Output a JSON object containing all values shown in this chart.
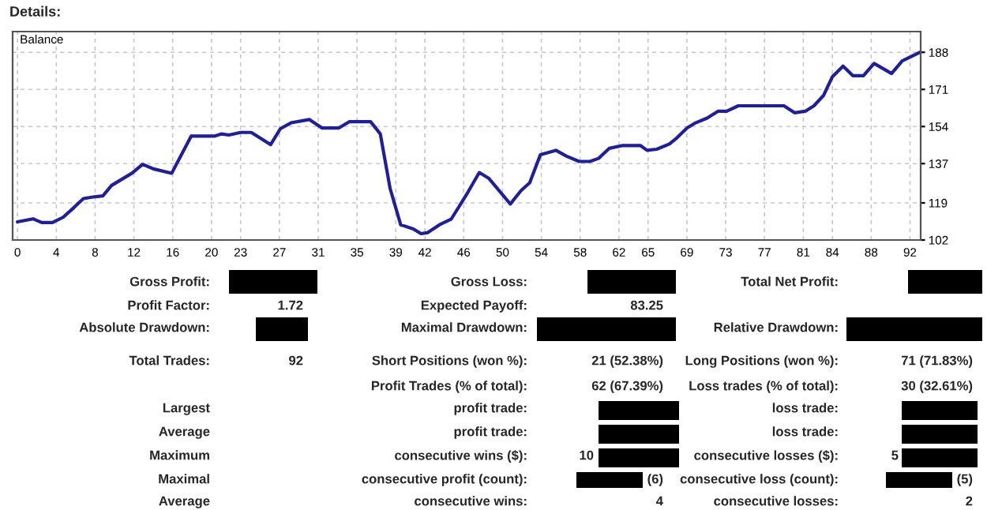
{
  "chart_data": {
    "type": "line",
    "title": "Details:",
    "xlim": [
      -0.5,
      93.1
    ],
    "ylim": [
      102,
      197.5
    ],
    "xticks": [
      0,
      4,
      8,
      12,
      16,
      20,
      23,
      27,
      31,
      35,
      39,
      42,
      46,
      50,
      54,
      58,
      62,
      65,
      69,
      73,
      77,
      81,
      84,
      88,
      92
    ],
    "yticks": [
      102,
      119,
      137,
      154,
      171,
      188
    ],
    "grid": true,
    "series": [
      {
        "name": "Balance",
        "color": "#1f1f9e",
        "x": [
          0,
          1.6,
          2.5,
          3.6,
          4.7,
          5.8,
          6.8,
          7.8,
          8.8,
          9.7,
          11.8,
          12.9,
          14,
          15.9,
          17.9,
          20.3,
          21,
          21.8,
          23,
          24.1,
          26.1,
          27.1,
          28.2,
          30.1,
          31.4,
          33.1,
          34.2,
          36.4,
          37.4,
          38.4,
          39.5,
          40.8,
          41.6,
          42.3,
          43.5,
          44.7,
          46.3,
          47.6,
          48.6,
          50.8,
          51.9,
          52.8,
          53.9,
          55.5,
          56.6,
          57.9,
          59,
          59.9,
          61,
          62.4,
          64.2,
          64.9,
          65.9,
          67.2,
          68,
          69,
          69.9,
          71.1,
          72.2,
          73.1,
          74.3,
          79,
          80.1,
          81.2,
          82.1,
          83.1,
          84,
          85.1,
          86.1,
          87.2,
          88.3,
          90.1,
          91.2,
          93
        ],
        "values": [
          110.3,
          111.7,
          110,
          110,
          112.4,
          116.8,
          121,
          121.7,
          122.2,
          127,
          132.6,
          136.7,
          134.6,
          132.6,
          149.6,
          149.6,
          150.6,
          150.1,
          151.3,
          151.3,
          145.7,
          153,
          155.7,
          157.2,
          153.3,
          153.3,
          156.2,
          156.2,
          150.6,
          125.8,
          109,
          107.1,
          104.9,
          105.4,
          109,
          111.5,
          122.9,
          132.9,
          130.2,
          118.5,
          124.6,
          128.2,
          141.1,
          143.1,
          140.4,
          138,
          138,
          139.4,
          144,
          145.3,
          145.3,
          143.1,
          143.6,
          146,
          148.9,
          153.3,
          155.7,
          157.9,
          161,
          161,
          163.5,
          163.5,
          160.3,
          161,
          163.5,
          168.3,
          176.8,
          181.7,
          177.3,
          177.3,
          182.9,
          178.3,
          184.1,
          188
        ]
      }
    ],
    "annotations": [
      "Gross Profit:",
      "Gross Loss:",
      "Total Net Profit:",
      "Profit Factor:",
      "1.72",
      "Expected Payoff:",
      "83.25",
      "Absolute Drawdown:",
      "Maximal Drawdown:",
      "Relative Drawdown:",
      "Total Trades:",
      "92",
      "Short Positions (won %):",
      "21 (52.38%)",
      "Long Positions (won %):",
      "71 (71.83%)",
      "Profit Trades (% of total):",
      "62 (67.39%)",
      "Loss trades (% of total):",
      "30 (32.61%)",
      "Largest",
      "profit trade:",
      "loss trade:",
      "Average",
      "profit trade:",
      "loss trade:",
      "Maximum",
      "consecutive wins ($):",
      "10",
      "consecutive losses ($):",
      "5",
      "Maximal",
      "consecutive profit (count):",
      "(6)",
      "consecutive loss (count):",
      "(5)",
      "Average",
      "consecutive wins:",
      "4",
      "consecutive losses:",
      "2"
    ]
  }
}
